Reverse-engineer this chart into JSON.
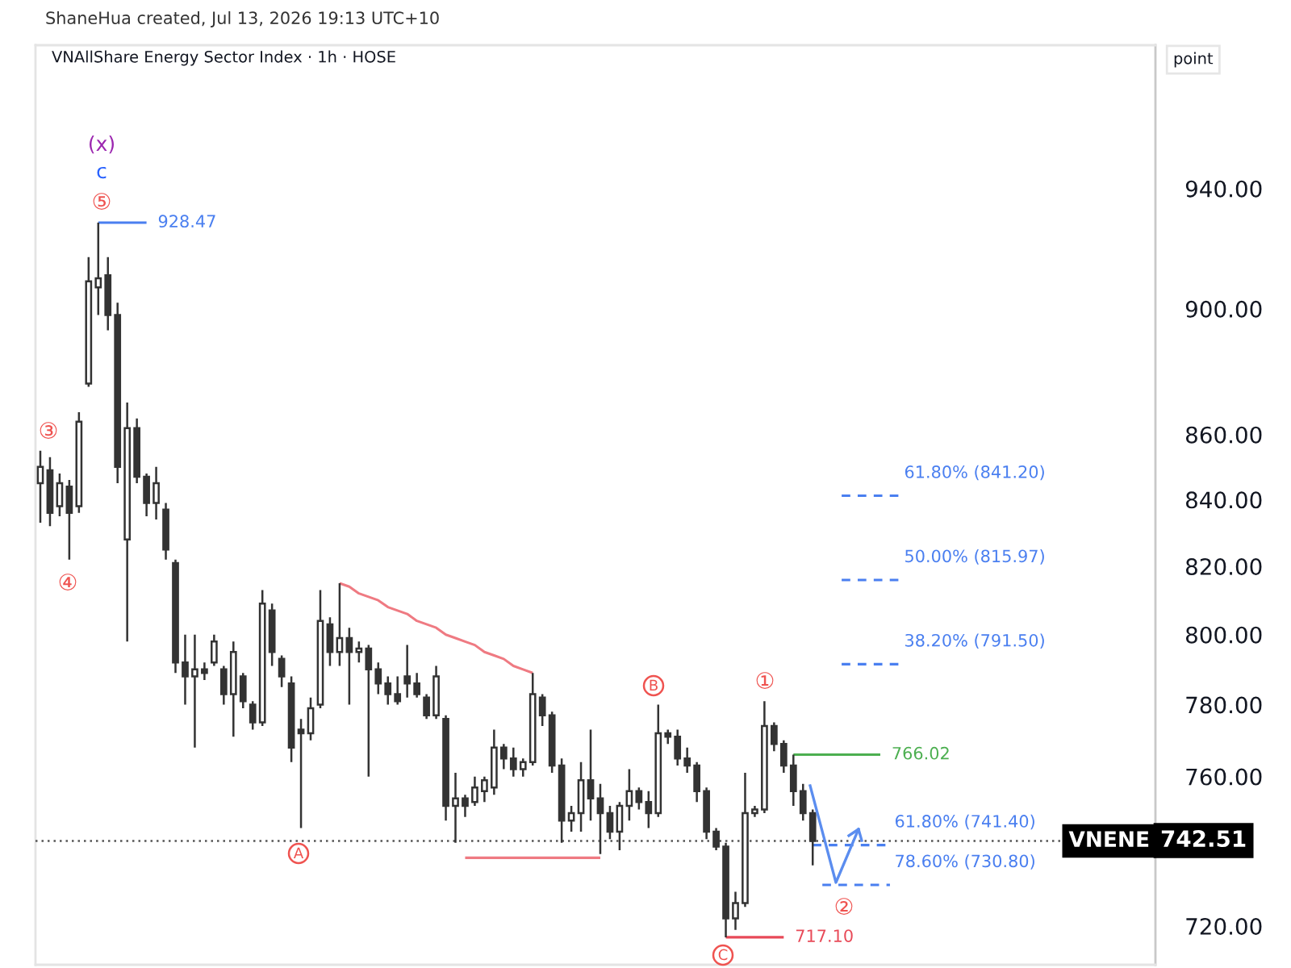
{
  "chart_data": {
    "type": "candlestick",
    "title": "VNAllShare Energy Sector Index · 1h · HOSE",
    "ylabel": "point",
    "annotations": [
      "ShaneHua created, Jul 13, 2026 19:13 UTC+10",
      "(x)",
      "c",
      "⑤",
      "③",
      "④",
      "A",
      "B",
      "C",
      "①",
      "②",
      "742.51"
    ],
    "categories": [
      null,
      null,
      null,
      null,
      null,
      null,
      null,
      null,
      null,
      null,
      null,
      null,
      null,
      null,
      null,
      null,
      null,
      null,
      null,
      null,
      null,
      null,
      null,
      null,
      null,
      null,
      null,
      null,
      null,
      null,
      null,
      null,
      null,
      null,
      null,
      null,
      null,
      null,
      null,
      null,
      null,
      null,
      null,
      null,
      null,
      null,
      null,
      null,
      null,
      null,
      null,
      null,
      null,
      null,
      null,
      null,
      null,
      null,
      null,
      null,
      null,
      null,
      null,
      null,
      null,
      null,
      null,
      null,
      null,
      null,
      null,
      null,
      null,
      null,
      null,
      null,
      null,
      null,
      null,
      null,
      null,
      null,
      null,
      null,
      null,
      null,
      null,
      null,
      null,
      null,
      null,
      null,
      null,
      null,
      null,
      null,
      null,
      null,
      null,
      null,
      null,
      null,
      null,
      null,
      null,
      null,
      null,
      null,
      null,
      null,
      null,
      null,
      null,
      null,
      null,
      null
    ],
    "color": "#333333",
    "ohlc": [
      [
        845,
        855,
        833,
        850
      ],
      [
        849,
        853,
        832,
        836
      ],
      [
        838,
        848,
        835,
        845
      ],
      [
        844,
        846,
        822,
        836
      ],
      [
        838,
        867,
        836,
        864
      ],
      [
        876,
        917,
        875,
        909
      ],
      [
        907,
        928.47,
        898,
        910
      ],
      [
        911,
        917,
        893,
        898
      ],
      [
        898,
        902,
        845,
        850
      ],
      [
        828,
        870,
        798,
        862
      ],
      [
        862,
        865,
        845,
        847
      ],
      [
        847,
        848,
        835,
        839
      ],
      [
        839,
        850,
        834,
        845
      ],
      [
        837,
        839,
        822,
        825
      ],
      [
        821,
        822,
        789,
        792
      ],
      [
        792,
        800,
        780,
        788
      ],
      [
        788,
        800,
        768,
        790
      ],
      [
        790,
        792,
        787,
        789
      ],
      [
        792,
        800,
        791,
        798
      ],
      [
        790,
        791,
        780,
        783
      ],
      [
        783,
        798,
        771,
        795
      ],
      [
        788,
        789,
        779,
        781
      ],
      [
        780,
        781,
        773,
        775
      ],
      [
        775,
        813,
        774,
        809
      ],
      [
        807,
        809,
        791,
        795
      ],
      [
        793,
        794,
        785,
        788
      ],
      [
        786,
        788,
        764,
        768
      ],
      [
        773,
        776,
        746,
        772
      ],
      [
        772,
        782,
        770,
        779
      ],
      [
        780,
        813,
        779,
        804
      ],
      [
        803,
        805,
        791,
        795
      ],
      [
        795,
        815,
        791,
        799
      ],
      [
        799,
        802,
        780,
        795
      ],
      [
        795,
        798,
        792,
        796
      ],
      [
        796,
        797,
        760,
        790
      ],
      [
        790,
        792,
        783,
        786
      ],
      [
        786,
        788,
        780,
        783
      ],
      [
        783,
        788,
        780,
        781
      ],
      [
        788,
        797,
        782,
        786
      ],
      [
        786,
        789,
        782,
        783
      ],
      [
        782,
        783,
        776,
        777
      ],
      [
        777,
        791,
        776,
        788
      ],
      [
        776,
        777,
        748,
        752
      ],
      [
        752,
        761,
        742,
        754
      ],
      [
        754,
        755,
        749,
        752
      ],
      [
        753,
        760,
        752,
        757
      ],
      [
        756,
        760,
        753,
        759
      ],
      [
        757,
        773,
        755,
        768
      ],
      [
        768,
        769,
        762,
        765
      ],
      [
        765,
        768,
        760,
        762
      ],
      [
        762,
        765,
        760,
        764
      ],
      [
        764,
        789,
        763,
        783
      ],
      [
        782,
        783,
        774,
        777
      ],
      [
        777,
        778,
        761,
        763
      ],
      [
        763,
        765,
        742,
        748
      ],
      [
        748,
        752,
        745,
        750
      ],
      [
        750,
        764,
        745,
        759
      ],
      [
        759,
        773,
        748,
        754
      ],
      [
        754,
        758,
        739,
        750
      ],
      [
        750,
        752,
        743,
        745
      ],
      [
        745,
        753,
        740,
        752
      ],
      [
        752,
        762,
        748,
        756
      ],
      [
        756,
        757,
        751,
        753
      ],
      [
        753,
        756,
        746,
        750
      ],
      [
        750,
        780,
        749,
        772
      ],
      [
        772,
        773,
        769,
        771
      ],
      [
        771,
        773,
        763,
        765
      ],
      [
        765,
        768,
        761,
        763
      ],
      [
        763,
        764,
        753,
        756
      ],
      [
        756,
        757,
        743,
        745
      ],
      [
        745,
        746,
        740,
        741
      ],
      [
        741,
        742,
        717.1,
        722
      ],
      [
        722,
        729,
        719,
        726
      ],
      [
        726,
        761,
        725,
        750
      ],
      [
        750,
        752,
        749,
        751
      ],
      [
        751,
        781,
        750,
        774
      ],
      [
        774,
        775,
        767,
        769
      ],
      [
        769,
        770,
        761,
        763
      ],
      [
        763,
        766.02,
        752,
        756
      ],
      [
        756,
        758,
        748,
        750
      ],
      [
        750,
        751,
        736,
        742.51
      ],
      null,
      null,
      null,
      null,
      null,
      null,
      null,
      null,
      null,
      null,
      null,
      null,
      null,
      null,
      null,
      null,
      null,
      null,
      null,
      null,
      null,
      null,
      null,
      null,
      null,
      null,
      null,
      null,
      null,
      null,
      null,
      null,
      null,
      null,
      null
    ],
    "series": [
      {
        "type": "line",
        "name": "928.47",
        "color": "#4a7ff0",
        "line_style": "solid",
        "values": [
          null,
          null,
          null,
          null,
          null,
          null,
          928.47,
          928.47,
          928.47,
          928.47,
          928.47,
          928.47,
          null,
          null,
          null,
          null,
          null,
          null,
          null,
          null,
          null,
          null,
          null,
          null,
          null,
          null,
          null,
          null,
          null,
          null,
          null,
          null,
          null,
          null,
          null,
          null,
          null,
          null,
          null,
          null,
          null,
          null,
          null,
          null,
          null,
          null,
          null,
          null,
          null,
          null,
          null,
          null,
          null,
          null,
          null,
          null,
          null,
          null,
          null,
          null,
          null,
          null,
          null,
          null,
          null,
          null,
          null,
          null,
          null,
          null,
          null,
          null,
          null,
          null,
          null,
          null,
          null,
          null,
          null,
          null,
          null,
          null,
          null,
          null,
          null,
          null,
          null,
          null,
          null,
          null,
          null,
          null,
          null,
          null,
          null,
          null,
          null,
          null,
          null,
          null,
          null,
          null,
          null,
          null,
          null,
          null,
          null,
          null,
          null,
          null,
          null,
          null,
          null,
          null,
          null,
          null
        ]
      },
      {
        "type": "line",
        "color": "#ef7a82",
        "line_style": "solid",
        "values": [
          null,
          null,
          null,
          null,
          null,
          null,
          null,
          null,
          null,
          null,
          null,
          null,
          null,
          null,
          null,
          null,
          null,
          null,
          null,
          null,
          null,
          null,
          null,
          null,
          null,
          null,
          null,
          null,
          null,
          null,
          null,
          815,
          814,
          812,
          811,
          810,
          808,
          807,
          806,
          804,
          803,
          802,
          800,
          799,
          798,
          797,
          795,
          794,
          793,
          791,
          790,
          789,
          null,
          null,
          null,
          null,
          null,
          null,
          null,
          null,
          null,
          null,
          null,
          null,
          null,
          null,
          null,
          null,
          null,
          null,
          null,
          null,
          null,
          null,
          null,
          null,
          null,
          null,
          null,
          null,
          null,
          null,
          null,
          null,
          null,
          null,
          null,
          null,
          null,
          null,
          null,
          null,
          null,
          null,
          null,
          null,
          null,
          null,
          null,
          null,
          null,
          null,
          null,
          null,
          null,
          null,
          null,
          null,
          null,
          null,
          null,
          null,
          null,
          null,
          null,
          null
        ]
      },
      {
        "type": "line",
        "color": "#ef7a82",
        "line_style": "solid",
        "values": [
          null,
          null,
          null,
          null,
          null,
          null,
          null,
          null,
          null,
          null,
          null,
          null,
          null,
          null,
          null,
          null,
          null,
          null,
          null,
          null,
          null,
          null,
          null,
          null,
          null,
          null,
          null,
          null,
          null,
          null,
          null,
          null,
          null,
          null,
          null,
          null,
          null,
          null,
          null,
          null,
          null,
          null,
          null,
          null,
          738,
          738,
          738,
          738,
          738,
          738,
          738,
          738,
          738,
          738,
          738,
          738,
          738,
          738,
          738,
          null,
          null,
          null,
          null,
          null,
          null,
          null,
          null,
          null,
          null,
          null,
          null,
          null,
          null,
          null,
          null,
          null,
          null,
          null,
          null,
          null,
          null,
          null,
          null,
          null,
          null,
          null,
          null,
          null,
          null,
          null,
          null,
          null,
          null,
          null,
          null,
          null,
          null,
          null,
          null,
          null,
          null,
          null,
          null,
          null,
          null,
          null,
          null,
          null,
          null,
          null,
          null,
          null,
          null,
          null,
          null,
          null
        ]
      },
      {
        "type": "line",
        "name": "717.10",
        "color": "#e84a58",
        "line_style": "solid",
        "values": [
          null,
          null,
          null,
          null,
          null,
          null,
          null,
          null,
          null,
          null,
          null,
          null,
          null,
          null,
          null,
          null,
          null,
          null,
          null,
          null,
          null,
          null,
          null,
          null,
          null,
          null,
          null,
          null,
          null,
          null,
          null,
          null,
          null,
          null,
          null,
          null,
          null,
          null,
          null,
          null,
          null,
          null,
          null,
          null,
          null,
          null,
          null,
          null,
          null,
          null,
          null,
          null,
          null,
          null,
          null,
          null,
          null,
          null,
          null,
          null,
          null,
          null,
          null,
          null,
          null,
          null,
          null,
          null,
          null,
          null,
          null,
          717.1,
          717.1,
          717.1,
          717.1,
          717.1,
          717.1,
          717.1,
          null,
          null,
          null,
          null,
          null,
          null,
          null,
          null,
          null,
          null,
          null,
          null,
          null,
          null,
          null,
          null,
          null,
          null,
          null,
          null,
          null,
          null,
          null,
          null,
          null,
          null,
          null,
          null,
          null,
          null,
          null,
          null,
          null,
          null,
          null,
          null,
          null,
          null
        ]
      },
      {
        "type": "line",
        "name": "766.02",
        "color": "#4caf50",
        "line_style": "solid",
        "values": [
          null,
          null,
          null,
          null,
          null,
          null,
          null,
          null,
          null,
          null,
          null,
          null,
          null,
          null,
          null,
          null,
          null,
          null,
          null,
          null,
          null,
          null,
          null,
          null,
          null,
          null,
          null,
          null,
          null,
          null,
          null,
          null,
          null,
          null,
          null,
          null,
          null,
          null,
          null,
          null,
          null,
          null,
          null,
          null,
          null,
          null,
          null,
          null,
          null,
          null,
          null,
          null,
          null,
          null,
          null,
          null,
          null,
          null,
          null,
          null,
          null,
          null,
          null,
          null,
          null,
          null,
          null,
          null,
          null,
          null,
          null,
          null,
          null,
          null,
          null,
          null,
          null,
          null,
          766.02,
          766.02,
          766.02,
          766.02,
          766.02,
          766.02,
          766.02,
          766.02,
          766.02,
          766.02,
          null,
          null,
          null,
          null,
          null,
          null,
          null,
          null,
          null,
          null,
          null,
          null,
          null,
          null,
          null,
          null,
          null,
          null,
          null,
          null,
          null,
          null,
          null,
          null,
          null,
          null,
          null,
          null
        ]
      },
      {
        "type": "line",
        "name": "61.80% (841.20)",
        "color": "#4a7ff0",
        "line_style": "dashed",
        "values": [
          null,
          null,
          null,
          null,
          null,
          null,
          null,
          null,
          null,
          null,
          null,
          null,
          null,
          null,
          null,
          null,
          null,
          null,
          null,
          null,
          null,
          null,
          null,
          null,
          null,
          null,
          null,
          null,
          null,
          null,
          null,
          null,
          null,
          null,
          null,
          null,
          null,
          null,
          null,
          null,
          null,
          null,
          null,
          null,
          null,
          null,
          null,
          null,
          null,
          null,
          null,
          null,
          null,
          null,
          null,
          null,
          null,
          null,
          null,
          null,
          null,
          null,
          null,
          null,
          null,
          null,
          null,
          null,
          null,
          null,
          null,
          null,
          null,
          null,
          null,
          null,
          null,
          null,
          null,
          null,
          null,
          null,
          null,
          841.2,
          841.2,
          841.2,
          841.2,
          841.2,
          841.2,
          841.2,
          null,
          null,
          null,
          null,
          null,
          null,
          null,
          null,
          null,
          null,
          null,
          null,
          null,
          null,
          null,
          null,
          null,
          null,
          null,
          null,
          null,
          null,
          null,
          null,
          null,
          null
        ]
      },
      {
        "type": "line",
        "name": "50.00% (815.97)",
        "color": "#4a7ff0",
        "line_style": "dashed",
        "values": [
          null,
          null,
          null,
          null,
          null,
          null,
          null,
          null,
          null,
          null,
          null,
          null,
          null,
          null,
          null,
          null,
          null,
          null,
          null,
          null,
          null,
          null,
          null,
          null,
          null,
          null,
          null,
          null,
          null,
          null,
          null,
          null,
          null,
          null,
          null,
          null,
          null,
          null,
          null,
          null,
          null,
          null,
          null,
          null,
          null,
          null,
          null,
          null,
          null,
          null,
          null,
          null,
          null,
          null,
          null,
          null,
          null,
          null,
          null,
          null,
          null,
          null,
          null,
          null,
          null,
          null,
          null,
          null,
          null,
          null,
          null,
          null,
          null,
          null,
          null,
          null,
          null,
          null,
          null,
          null,
          null,
          null,
          null,
          815.97,
          815.97,
          815.97,
          815.97,
          815.97,
          815.97,
          815.97,
          null,
          null,
          null,
          null,
          null,
          null,
          null,
          null,
          null,
          null,
          null,
          null,
          null,
          null,
          null,
          null,
          null,
          null,
          null,
          null,
          null,
          null,
          null,
          null,
          null,
          null
        ]
      },
      {
        "type": "line",
        "name": "38.20% (791.50)",
        "color": "#4a7ff0",
        "line_style": "dashed",
        "values": [
          null,
          null,
          null,
          null,
          null,
          null,
          null,
          null,
          null,
          null,
          null,
          null,
          null,
          null,
          null,
          null,
          null,
          null,
          null,
          null,
          null,
          null,
          null,
          null,
          null,
          null,
          null,
          null,
          null,
          null,
          null,
          null,
          null,
          null,
          null,
          null,
          null,
          null,
          null,
          null,
          null,
          null,
          null,
          null,
          null,
          null,
          null,
          null,
          null,
          null,
          null,
          null,
          null,
          null,
          null,
          null,
          null,
          null,
          null,
          null,
          null,
          null,
          null,
          null,
          null,
          null,
          null,
          null,
          null,
          null,
          null,
          null,
          null,
          null,
          null,
          null,
          null,
          null,
          null,
          null,
          null,
          null,
          null,
          791.5,
          791.5,
          791.5,
          791.5,
          791.5,
          791.5,
          791.5,
          null,
          null,
          null,
          null,
          null,
          null,
          null,
          null,
          null,
          null,
          null,
          null,
          null,
          null,
          null,
          null,
          null,
          null,
          null,
          null,
          null,
          null,
          null,
          null,
          null,
          null
        ]
      },
      {
        "type": "line",
        "name": "61.80% (741.40)",
        "color": "#4a7ff0",
        "line_style": "dashed",
        "values": [
          null,
          null,
          null,
          null,
          null,
          null,
          null,
          null,
          null,
          null,
          null,
          null,
          null,
          null,
          null,
          null,
          null,
          null,
          null,
          null,
          null,
          null,
          null,
          null,
          null,
          null,
          null,
          null,
          null,
          null,
          null,
          null,
          null,
          null,
          null,
          null,
          null,
          null,
          null,
          null,
          null,
          null,
          null,
          null,
          null,
          null,
          null,
          null,
          null,
          null,
          null,
          null,
          null,
          null,
          null,
          null,
          null,
          null,
          null,
          null,
          null,
          null,
          null,
          null,
          null,
          null,
          null,
          null,
          null,
          null,
          null,
          null,
          null,
          null,
          null,
          null,
          null,
          null,
          null,
          null,
          741.4,
          741.4,
          741.4,
          741.4,
          741.4,
          741.4,
          741.4,
          741.4,
          741.4,
          null,
          null,
          null,
          null,
          null,
          null,
          null,
          null,
          null,
          null,
          null,
          null,
          null,
          null,
          null,
          null,
          null,
          null,
          null,
          null,
          null,
          null,
          null,
          null,
          null,
          null,
          null
        ]
      },
      {
        "type": "line",
        "name": "78.60% (730.80)",
        "color": "#4a7ff0",
        "line_style": "dashed",
        "values": [
          null,
          null,
          null,
          null,
          null,
          null,
          null,
          null,
          null,
          null,
          null,
          null,
          null,
          null,
          null,
          null,
          null,
          null,
          null,
          null,
          null,
          null,
          null,
          null,
          null,
          null,
          null,
          null,
          null,
          null,
          null,
          null,
          null,
          null,
          null,
          null,
          null,
          null,
          null,
          null,
          null,
          null,
          null,
          null,
          null,
          null,
          null,
          null,
          null,
          null,
          null,
          null,
          null,
          null,
          null,
          null,
          null,
          null,
          null,
          null,
          null,
          null,
          null,
          null,
          null,
          null,
          null,
          null,
          null,
          null,
          null,
          null,
          null,
          null,
          null,
          null,
          null,
          null,
          null,
          null,
          null,
          730.8,
          730.8,
          730.8,
          730.8,
          730.8,
          730.8,
          730.8,
          730.8,
          null,
          null,
          null,
          null,
          null,
          null,
          null,
          null,
          null,
          null,
          null,
          null,
          null,
          null,
          null,
          null,
          null,
          null,
          null,
          null,
          null,
          null,
          null,
          null,
          null,
          null,
          null
        ]
      }
    ],
    "ref_lines": [
      {
        "axis": "y",
        "value": 742.51,
        "label": "VNENE",
        "color": "#555555",
        "line_style": "dotted"
      }
    ],
    "log": true,
    "ylim": [
      710,
      990
    ],
    "yticks": [
      {
        "value": 720,
        "label": "720.00"
      },
      {
        "value": 760,
        "label": "760.00"
      },
      {
        "value": 780,
        "label": "780.00"
      },
      {
        "value": 800,
        "label": "800.00"
      },
      {
        "value": 820,
        "label": "820.00"
      },
      {
        "value": 840,
        "label": "840.00"
      },
      {
        "value": 860,
        "label": "860.00"
      },
      {
        "value": 900,
        "label": "900.00"
      },
      {
        "value": 940,
        "label": "940.00"
      }
    ],
    "tick_labels": "y"
  }
}
